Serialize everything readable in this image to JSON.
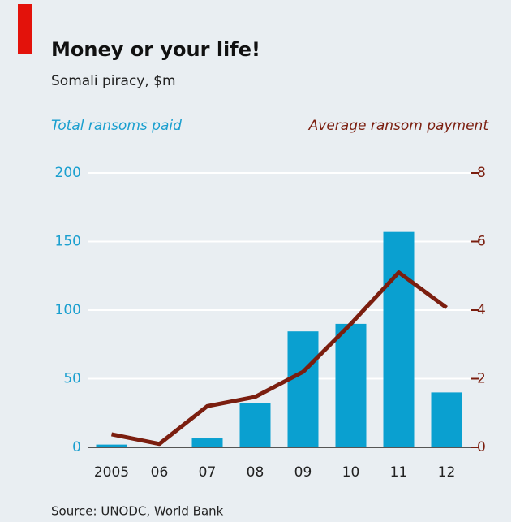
{
  "chart_data": {
    "type": "bar",
    "title": "Money or your life!",
    "subtitle": "Somali piracy, $m",
    "source": "Source: UNODC, World Bank",
    "categories": [
      "2005",
      "06",
      "07",
      "08",
      "09",
      "10",
      "11",
      "12"
    ],
    "series": [
      {
        "name": "Total ransoms paid",
        "type": "bar",
        "color": "#0aa0d0",
        "values": [
          2,
          0.5,
          6.5,
          32.5,
          84.5,
          90,
          157,
          40
        ]
      },
      {
        "name": "Average ransom payment",
        "type": "line",
        "axis": "y2",
        "color": "#7b1e0f",
        "values": [
          0.38,
          0.1,
          1.2,
          1.47,
          2.2,
          3.6,
          5.1,
          4.07
        ]
      }
    ],
    "ylim": [
      0,
      200
    ],
    "yticks": [
      0,
      50,
      100,
      150,
      200
    ],
    "y2lim": [
      0,
      8
    ],
    "y2ticks": [
      0,
      2,
      4,
      6,
      8
    ],
    "grid": true
  }
}
